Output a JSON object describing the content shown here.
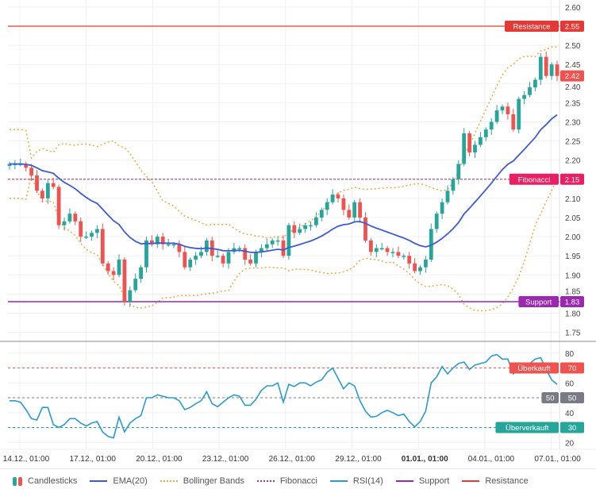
{
  "chart_data": {
    "type": "candlestick",
    "price_axis": {
      "ticks": [
        "2.60",
        "2.55",
        "2.50",
        "2.45",
        "2.40",
        "2.35",
        "2.30",
        "2.25",
        "2.20",
        "2.15",
        "2.10",
        "2.05",
        "2.00",
        "1.95",
        "1.90",
        "1.85",
        "1.80",
        "1.75"
      ],
      "range": [
        1.74,
        2.61
      ]
    },
    "rsi_axis": {
      "ticks": [
        "80",
        "70",
        "60",
        "50",
        "40",
        "30",
        "20"
      ],
      "range": [
        17,
        87
      ]
    },
    "x_labels": [
      "14.12., 01:00",
      "17.12., 01:00",
      "20.12., 01:00",
      "23.12., 01:00",
      "26.12., 01:00",
      "29.12., 01:00",
      "01.01., 01:00",
      "04.01., 01:00",
      "07.01., 01:00"
    ],
    "x_label_bold_index": 6,
    "first_open": 2.185,
    "closes": [
      2.19,
      2.19,
      2.19,
      2.18,
      2.16,
      2.12,
      2.1,
      2.14,
      2.13,
      2.03,
      2.04,
      2.06,
      2.04,
      2.0,
      2.0,
      2.01,
      2.02,
      1.93,
      1.91,
      1.9,
      1.94,
      1.83,
      1.86,
      1.89,
      1.92,
      1.99,
      1.98,
      2.0,
      1.98,
      1.98,
      1.98,
      1.96,
      1.92,
      1.94,
      1.95,
      1.96,
      1.99,
      1.95,
      1.95,
      1.93,
      1.96,
      1.97,
      1.97,
      1.94,
      1.93,
      1.96,
      1.97,
      1.98,
      1.99,
      1.99,
      1.95,
      2.03,
      2.01,
      2.02,
      2.03,
      2.03,
      2.05,
      2.07,
      2.09,
      2.11,
      2.1,
      2.07,
      2.05,
      2.09,
      2.05,
      1.99,
      1.96,
      1.97,
      1.97,
      1.96,
      1.96,
      1.95,
      1.95,
      1.93,
      1.91,
      1.92,
      1.94,
      2.02,
      2.06,
      2.09,
      2.12,
      2.15,
      2.19,
      2.27,
      2.22,
      2.24,
      2.26,
      2.28,
      2.3,
      2.33,
      2.34,
      2.32,
      2.28,
      2.36,
      2.37,
      2.39,
      2.41,
      2.47,
      2.42,
      2.45,
      2.42
    ],
    "rsi": [
      48,
      48,
      47,
      42,
      36,
      35,
      43.5,
      43.5,
      32,
      30,
      32,
      36,
      36,
      33,
      31,
      33,
      34,
      27,
      24,
      23,
      37,
      27,
      33,
      36,
      38,
      50,
      50,
      52,
      51,
      50,
      50,
      48,
      42,
      43.5,
      46,
      48,
      54,
      46,
      44,
      47,
      50,
      52,
      51,
      45,
      45,
      49,
      55,
      58,
      58,
      60,
      47,
      59,
      57.5,
      60,
      60,
      58,
      60.5,
      62,
      67,
      70,
      63,
      56,
      60,
      58,
      48,
      41,
      37,
      37.5,
      40,
      41.5,
      40,
      38,
      39,
      34,
      30.5,
      34,
      41,
      60,
      64,
      71,
      66,
      70,
      73,
      74,
      69,
      72,
      73,
      74,
      78,
      79,
      76,
      76,
      66,
      70,
      72,
      73,
      76,
      77,
      69,
      62,
      59
    ],
    "ema_period": 20,
    "bollinger": {
      "period": 20,
      "stddev": 2
    },
    "levels": {
      "resistance": {
        "label": "Resistance",
        "value": 2.55,
        "value_label": "2.55"
      },
      "fibonacci": {
        "label": "Fibonacci",
        "value": 2.15,
        "value_label": "2.15"
      },
      "support": {
        "label": "Support",
        "value": 1.83,
        "value_label": "1.83"
      },
      "current": {
        "value": 2.42,
        "value_label": "2.42"
      }
    },
    "rsi_levels": {
      "overbought": {
        "label": "Überkauft",
        "value": 70,
        "value_label": "70"
      },
      "mid": {
        "label": "50",
        "value": 50,
        "value_label": "50"
      },
      "oversold": {
        "label": "Überverkauft",
        "value": 30,
        "value_label": "30"
      }
    },
    "colors": {
      "up": "#26a69a",
      "down": "#ef5350",
      "ema": "#3d5bd9",
      "bb": "#f0a83a",
      "fib": "#b03a78",
      "fib_badge": "#e91e63",
      "rsi": "#2a9bd0",
      "support": "#9c27b0",
      "resistance": "#e53935",
      "mid": "#787b86",
      "oversold": "#26a69a",
      "overbought": "#ef5350"
    }
  },
  "legend": {
    "candlesticks": "Candlesticks",
    "ema": "EMA(20)",
    "bollinger": "Bollinger Bands",
    "fibonacci": "Fibonacci",
    "rsi": "RSI(14)",
    "support": "Support",
    "resistance": "Resistance"
  }
}
